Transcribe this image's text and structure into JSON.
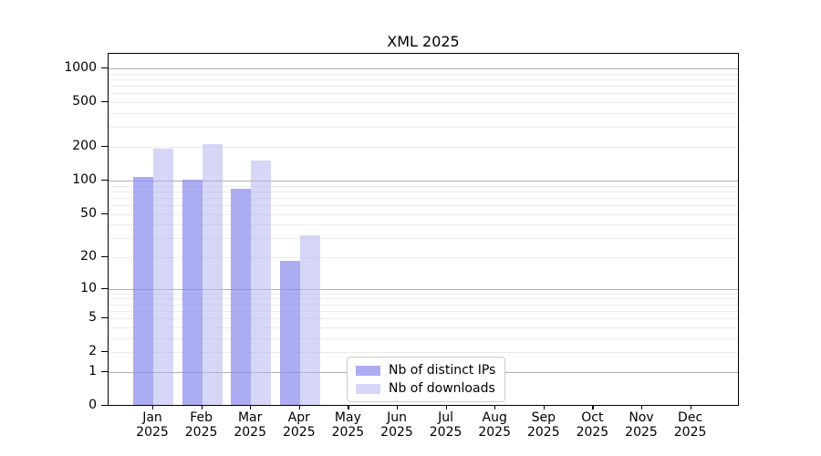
{
  "chart_data": {
    "type": "bar",
    "title": "XML 2025",
    "categories": [
      "Jan 2025",
      "Feb 2025",
      "Mar 2025",
      "Apr 2025",
      "May 2025",
      "Jun 2025",
      "Jul 2025",
      "Aug 2025",
      "Sep 2025",
      "Oct 2025",
      "Nov 2025",
      "Dec 2025"
    ],
    "series": [
      {
        "name": "Nb of distinct IPs",
        "color": "#8c8cee",
        "opacity": 0.72,
        "values": [
          105,
          100,
          83,
          18,
          null,
          null,
          null,
          null,
          null,
          null,
          null,
          null
        ]
      },
      {
        "name": "Nb of downloads",
        "color": "#b4b4f0",
        "opacity": 0.55,
        "values": [
          190,
          206,
          147,
          31,
          null,
          null,
          null,
          null,
          null,
          null,
          null,
          null
        ]
      }
    ],
    "xlabel": "",
    "ylabel": "",
    "yscale": "log1p",
    "ylim": [
      0,
      1333
    ],
    "yticks": [
      1000,
      500,
      200,
      100,
      50,
      20,
      10,
      5,
      2,
      1,
      0
    ],
    "grid": true,
    "grid_major_color": "#b0b0b0",
    "grid_minor_color": "#ebebeb",
    "legend_position": "lower center"
  }
}
